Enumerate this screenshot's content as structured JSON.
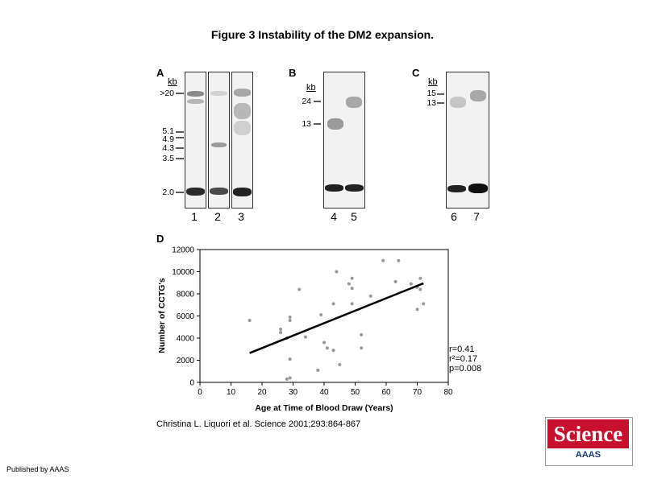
{
  "figure_title": "Figure 3 Instability of the DM2 expansion.",
  "panels": {
    "A": {
      "letter": "A",
      "kb": "kb",
      "markers": [
        ">20",
        "5.1",
        "4.9",
        "4.3",
        "3.5",
        "2.0"
      ],
      "lanes": [
        "1",
        "2",
        "3"
      ]
    },
    "B": {
      "letter": "B",
      "kb": "kb",
      "markers": [
        "24",
        "13"
      ],
      "lanes": [
        "4",
        "5"
      ]
    },
    "C": {
      "letter": "C",
      "kb": "kb",
      "markers": [
        "15",
        "13"
      ],
      "lanes": [
        "6",
        "7"
      ]
    },
    "D": {
      "letter": "D"
    }
  },
  "chart_data": {
    "type": "scatter",
    "title": "",
    "xlabel": "Age at Time of Blood Draw (Years)",
    "ylabel": "Number of CCTG's",
    "xlim": [
      0,
      80
    ],
    "ylim": [
      0,
      12000
    ],
    "xticks": [
      0,
      10,
      20,
      30,
      40,
      50,
      60,
      70,
      80
    ],
    "yticks": [
      0,
      2000,
      4000,
      6000,
      8000,
      10000,
      12000
    ],
    "points": [
      [
        16,
        5600
      ],
      [
        26,
        4800
      ],
      [
        26,
        4500
      ],
      [
        28,
        4000
      ],
      [
        28,
        300
      ],
      [
        29,
        5900
      ],
      [
        29,
        5600
      ],
      [
        29,
        2100
      ],
      [
        29,
        400
      ],
      [
        32,
        8400
      ],
      [
        34,
        4100
      ],
      [
        38,
        1100
      ],
      [
        39,
        6100
      ],
      [
        40,
        3600
      ],
      [
        41,
        3100
      ],
      [
        43,
        2900
      ],
      [
        43,
        7100
      ],
      [
        44,
        10000
      ],
      [
        45,
        1600
      ],
      [
        48,
        8900
      ],
      [
        49,
        9400
      ],
      [
        49,
        8500
      ],
      [
        49,
        7100
      ],
      [
        52,
        4300
      ],
      [
        52,
        3100
      ],
      [
        55,
        7800
      ],
      [
        59,
        11000
      ],
      [
        63,
        9100
      ],
      [
        64,
        11000
      ],
      [
        68,
        8900
      ],
      [
        70,
        8600
      ],
      [
        70,
        6600
      ],
      [
        71,
        9400
      ],
      [
        71,
        8400
      ],
      [
        72,
        7100
      ]
    ],
    "trendline": {
      "x": [
        16,
        72
      ],
      "y": [
        2650,
        8950
      ]
    },
    "grid": false,
    "stats": [
      "r=0.41",
      "r²=0.17",
      "p=0.008"
    ]
  },
  "citation": "Christina L. Liquori et al. Science 2001;293:864-867",
  "published": "Published by AAAS",
  "logo": {
    "science": "Science",
    "aaas": "AAAS",
    "red": "#c8102e",
    "blue": "#1a3b78"
  }
}
